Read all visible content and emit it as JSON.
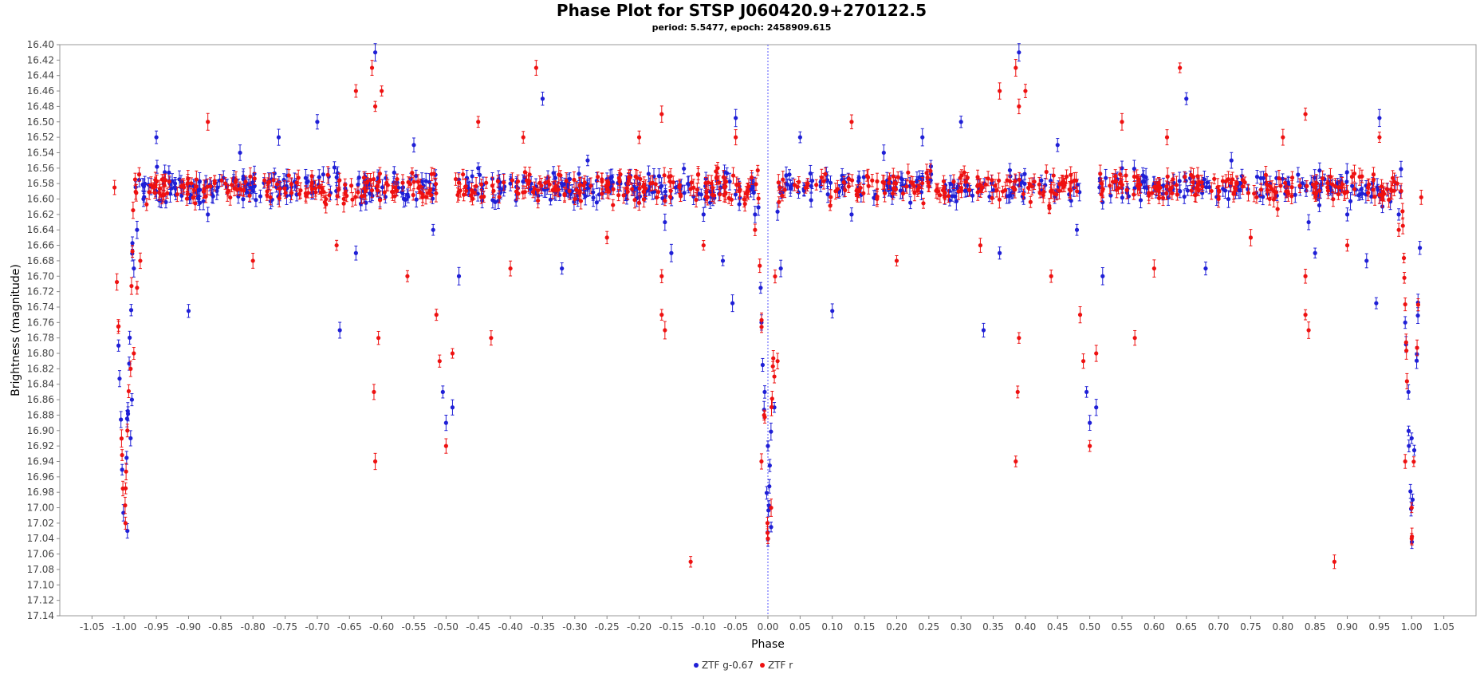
{
  "chart_data": {
    "type": "scatter",
    "title": "Phase Plot for STSP J060420.9+270122.5",
    "subtitle": "period: 5.5477, epoch: 2458909.615",
    "xlabel": "Phase",
    "ylabel": "Brightness (magnitude)",
    "xlim": [
      -1.1,
      1.1
    ],
    "ylim": [
      16.4,
      17.14
    ],
    "y_inverted": true,
    "x_ticks": [
      "-1.05",
      "-1.00",
      "-0.95",
      "-0.90",
      "-0.85",
      "-0.80",
      "-0.75",
      "-0.70",
      "-0.65",
      "-0.60",
      "-0.55",
      "-0.50",
      "-0.45",
      "-0.40",
      "-0.35",
      "-0.30",
      "-0.25",
      "-0.20",
      "-0.15",
      "-0.10",
      "-0.05",
      "0.00",
      "0.05",
      "0.10",
      "0.15",
      "0.20",
      "0.25",
      "0.30",
      "0.35",
      "0.40",
      "0.45",
      "0.50",
      "0.55",
      "0.60",
      "0.65",
      "0.70",
      "0.75",
      "0.80",
      "0.85",
      "0.90",
      "0.95",
      "1.00",
      "1.05"
    ],
    "y_ticks": [
      "16.40",
      "16.42",
      "16.44",
      "16.46",
      "16.48",
      "16.50",
      "16.52",
      "16.54",
      "16.56",
      "16.58",
      "16.60",
      "16.62",
      "16.64",
      "16.66",
      "16.68",
      "16.70",
      "16.72",
      "16.74",
      "16.76",
      "16.78",
      "16.80",
      "16.82",
      "16.84",
      "16.86",
      "16.88",
      "16.90",
      "16.92",
      "16.94",
      "16.96",
      "16.98",
      "17.00",
      "17.02",
      "17.04",
      "17.06",
      "17.08",
      "17.10",
      "17.12",
      "17.14"
    ],
    "reference_line_x": 0.0,
    "legend_position": "bottom-center",
    "colors": {
      "g": "#1f1fd6",
      "r": "#ee1111",
      "ref_line": "#5555ff"
    },
    "series": [
      {
        "name": "ZTF g-0.67",
        "color": "#1f1fd6",
        "points": [
          [
            -0.995,
            17.03
          ],
          [
            -0.99,
            16.91
          ],
          [
            -0.988,
            16.86
          ],
          [
            -0.985,
            16.69
          ],
          [
            -0.98,
            16.64
          ],
          [
            -0.97,
            16.6
          ],
          [
            -0.95,
            16.52
          ],
          [
            -0.9,
            16.745
          ],
          [
            -0.87,
            16.62
          ],
          [
            -0.82,
            16.54
          ],
          [
            -0.76,
            16.52
          ],
          [
            -0.7,
            16.5
          ],
          [
            -0.665,
            16.77
          ],
          [
            -0.64,
            16.67
          ],
          [
            -0.61,
            16.41
          ],
          [
            -0.55,
            16.53
          ],
          [
            -0.52,
            16.64
          ],
          [
            -0.505,
            16.85
          ],
          [
            -0.5,
            16.89
          ],
          [
            -0.49,
            16.87
          ],
          [
            -0.48,
            16.7
          ],
          [
            -0.45,
            16.56
          ],
          [
            -0.4,
            16.58
          ],
          [
            -0.35,
            16.47
          ],
          [
            -0.32,
            16.69
          ],
          [
            -0.28,
            16.55
          ],
          [
            -0.22,
            16.58
          ],
          [
            -0.16,
            16.63
          ],
          [
            -0.15,
            16.67
          ],
          [
            -0.1,
            16.62
          ],
          [
            -0.07,
            16.68
          ],
          [
            -0.055,
            16.735
          ],
          [
            -0.05,
            16.495
          ],
          [
            -0.02,
            16.62
          ],
          [
            -0.01,
            16.76
          ],
          [
            -0.005,
            16.85
          ],
          [
            0.0,
            16.92
          ],
          [
            0.005,
            17.025
          ],
          [
            0.01,
            16.87
          ],
          [
            0.02,
            16.69
          ],
          [
            0.05,
            16.52
          ],
          [
            0.1,
            16.745
          ],
          [
            0.13,
            16.62
          ],
          [
            0.18,
            16.54
          ],
          [
            0.24,
            16.52
          ],
          [
            0.3,
            16.5
          ],
          [
            0.335,
            16.77
          ],
          [
            0.36,
            16.67
          ],
          [
            0.39,
            16.41
          ],
          [
            0.45,
            16.53
          ],
          [
            0.48,
            16.64
          ],
          [
            0.495,
            16.85
          ],
          [
            0.5,
            16.89
          ],
          [
            0.51,
            16.87
          ],
          [
            0.52,
            16.7
          ],
          [
            0.55,
            16.56
          ],
          [
            0.6,
            16.58
          ],
          [
            0.65,
            16.47
          ],
          [
            0.68,
            16.69
          ],
          [
            0.72,
            16.55
          ],
          [
            0.78,
            16.58
          ],
          [
            0.84,
            16.63
          ],
          [
            0.85,
            16.67
          ],
          [
            0.9,
            16.62
          ],
          [
            0.93,
            16.68
          ],
          [
            0.945,
            16.735
          ],
          [
            0.95,
            16.495
          ],
          [
            0.98,
            16.62
          ],
          [
            0.99,
            16.76
          ],
          [
            0.995,
            16.85
          ],
          [
            1.0,
            16.91
          ]
        ]
      },
      {
        "name": "ZTF r",
        "color": "#ee1111",
        "points": [
          [
            -0.998,
            17.02
          ],
          [
            -0.995,
            16.9
          ],
          [
            -0.99,
            16.82
          ],
          [
            -0.985,
            16.8
          ],
          [
            -0.98,
            16.715
          ],
          [
            -0.975,
            16.68
          ],
          [
            -0.87,
            16.5
          ],
          [
            -0.8,
            16.68
          ],
          [
            -0.67,
            16.66
          ],
          [
            -0.64,
            16.46
          ],
          [
            -0.615,
            16.43
          ],
          [
            -0.61,
            16.48
          ],
          [
            -0.612,
            16.85
          ],
          [
            -0.61,
            16.94
          ],
          [
            -0.605,
            16.78
          ],
          [
            -0.6,
            16.46
          ],
          [
            -0.56,
            16.7
          ],
          [
            -0.515,
            16.75
          ],
          [
            -0.51,
            16.81
          ],
          [
            -0.5,
            16.92
          ],
          [
            -0.49,
            16.8
          ],
          [
            -0.45,
            16.5
          ],
          [
            -0.43,
            16.78
          ],
          [
            -0.4,
            16.69
          ],
          [
            -0.38,
            16.52
          ],
          [
            -0.36,
            16.43
          ],
          [
            -0.3,
            16.6
          ],
          [
            -0.25,
            16.65
          ],
          [
            -0.2,
            16.52
          ],
          [
            -0.165,
            16.49
          ],
          [
            -0.165,
            16.7
          ],
          [
            -0.165,
            16.75
          ],
          [
            -0.16,
            16.77
          ],
          [
            -0.12,
            17.07
          ],
          [
            -0.1,
            16.66
          ],
          [
            -0.05,
            16.52
          ],
          [
            -0.02,
            16.64
          ],
          [
            -0.01,
            16.94
          ],
          [
            0.0,
            17.04
          ],
          [
            0.005,
            17.0
          ],
          [
            0.01,
            16.83
          ],
          [
            0.015,
            16.81
          ],
          [
            0.13,
            16.5
          ],
          [
            0.2,
            16.68
          ],
          [
            0.33,
            16.66
          ],
          [
            0.36,
            16.46
          ],
          [
            0.385,
            16.43
          ],
          [
            0.39,
            16.48
          ],
          [
            0.388,
            16.85
          ],
          [
            0.385,
            16.94
          ],
          [
            0.39,
            16.78
          ],
          [
            0.4,
            16.46
          ],
          [
            0.44,
            16.7
          ],
          [
            0.485,
            16.75
          ],
          [
            0.49,
            16.81
          ],
          [
            0.5,
            16.92
          ],
          [
            0.51,
            16.8
          ],
          [
            0.55,
            16.5
          ],
          [
            0.57,
            16.78
          ],
          [
            0.6,
            16.69
          ],
          [
            0.62,
            16.52
          ],
          [
            0.64,
            16.43
          ],
          [
            0.7,
            16.6
          ],
          [
            0.75,
            16.65
          ],
          [
            0.8,
            16.52
          ],
          [
            0.835,
            16.49
          ],
          [
            0.835,
            16.7
          ],
          [
            0.835,
            16.75
          ],
          [
            0.84,
            16.77
          ],
          [
            0.88,
            17.07
          ],
          [
            0.9,
            16.66
          ],
          [
            0.95,
            16.52
          ],
          [
            0.98,
            16.64
          ],
          [
            0.99,
            16.94
          ],
          [
            1.0,
            17.04
          ],
          [
            1.0,
            17.0
          ]
        ]
      }
    ]
  }
}
